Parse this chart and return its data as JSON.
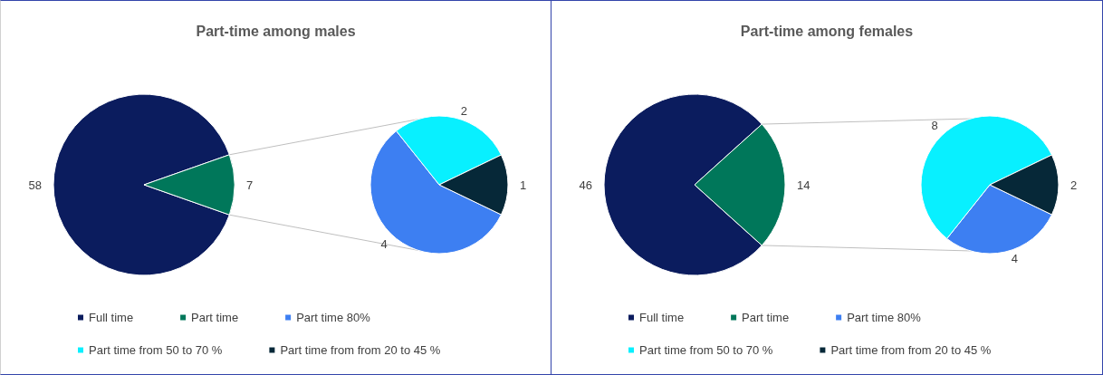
{
  "chart_data": [
    {
      "type": "pie",
      "title": "Part-time among males",
      "categories": [
        "Full time",
        "Part time",
        "Part time 80%",
        "Part time from 50 to 70 %",
        "Part time from from 20 to 45 %"
      ],
      "colors": [
        "#0b1c5e",
        "#00775a",
        "#3d7ff2",
        "#08f0ff",
        "#062838"
      ],
      "series": [
        {
          "values": [
            58,
            7,
            null,
            null,
            null
          ]
        },
        {
          "values": [
            null,
            null,
            4,
            2,
            1
          ]
        }
      ],
      "data_labels": true,
      "legend": "bottom"
    },
    {
      "type": "pie",
      "title": "Part-time among females",
      "categories": [
        "Full time",
        "Part time",
        "Part time 80%",
        "Part time from 50 to 70 %",
        "Part time from from 20 to 45 %"
      ],
      "colors": [
        "#0b1c5e",
        "#00775a",
        "#3d7ff2",
        "#08f0ff",
        "#062838"
      ],
      "series": [
        {
          "values": [
            46,
            14,
            null,
            null,
            null
          ]
        },
        {
          "values": [
            null,
            null,
            4,
            8,
            2
          ]
        }
      ],
      "data_labels": true,
      "legend": "bottom"
    }
  ]
}
